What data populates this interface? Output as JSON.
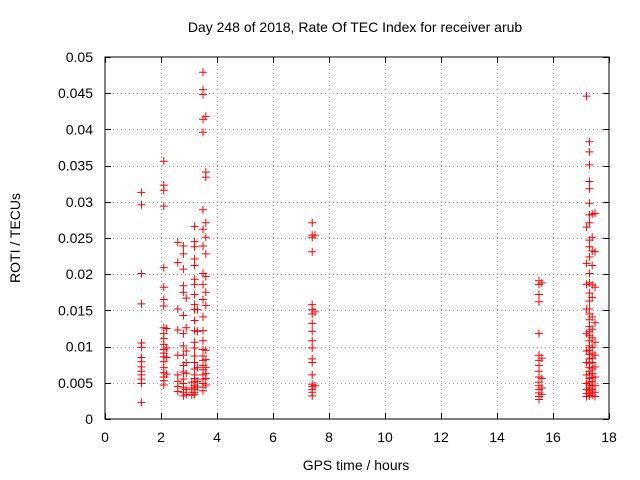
{
  "chart_data": {
    "type": "scatter",
    "title": "Day 248 of 2018, Rate Of TEC Index for receiver arub",
    "xlabel": "GPS time / hours",
    "ylabel": "ROTI / TECUs",
    "xlim": [
      0,
      18
    ],
    "ylim": [
      0,
      0.05
    ],
    "xticks": [
      0,
      2,
      4,
      6,
      8,
      10,
      12,
      14,
      16,
      18
    ],
    "xtick_labels": [
      "0",
      "2",
      "4",
      "6",
      "8",
      "10",
      "12",
      "14",
      "16",
      "18"
    ],
    "yticks": [
      0,
      0.005,
      0.01,
      0.015,
      0.02,
      0.025,
      0.03,
      0.035,
      0.04,
      0.045,
      0.05
    ],
    "ytick_labels": [
      "0",
      "0.005",
      "0.01",
      "0.015",
      "0.02",
      "0.025",
      "0.03",
      "0.035",
      "0.04",
      "0.045",
      "0.05"
    ],
    "grid": true,
    "marker": "+",
    "marker_color": "#ff0000",
    "series": [
      {
        "name": "ROTI",
        "points": [
          [
            1.3,
            0.0313
          ],
          [
            1.3,
            0.0296
          ],
          [
            1.3,
            0.0201
          ],
          [
            1.3,
            0.0159
          ],
          [
            1.3,
            0.0105
          ],
          [
            1.3,
            0.0099
          ],
          [
            1.3,
            0.0085
          ],
          [
            1.3,
            0.0079
          ],
          [
            1.3,
            0.0072
          ],
          [
            1.3,
            0.0066
          ],
          [
            1.3,
            0.0061
          ],
          [
            1.3,
            0.0055
          ],
          [
            1.3,
            0.0049
          ],
          [
            1.3,
            0.0023
          ],
          [
            2.1,
            0.0356
          ],
          [
            2.1,
            0.0323
          ],
          [
            2.1,
            0.0316
          ],
          [
            2.1,
            0.0294
          ],
          [
            2.1,
            0.0209
          ],
          [
            2.1,
            0.0182
          ],
          [
            2.1,
            0.0165
          ],
          [
            2.1,
            0.0156
          ],
          [
            2.1,
            0.0126
          ],
          [
            2.1,
            0.0118
          ],
          [
            2.1,
            0.0111
          ],
          [
            2.1,
            0.0103
          ],
          [
            2.1,
            0.0096
          ],
          [
            2.1,
            0.0091
          ],
          [
            2.1,
            0.0086
          ],
          [
            2.1,
            0.0079
          ],
          [
            2.1,
            0.0071
          ],
          [
            2.1,
            0.0064
          ],
          [
            2.1,
            0.0058
          ],
          [
            2.1,
            0.0053
          ],
          [
            2.1,
            0.0047
          ],
          [
            2.2,
            0.0125
          ],
          [
            2.2,
            0.0098
          ],
          [
            2.2,
            0.0085
          ],
          [
            2.2,
            0.0062
          ],
          [
            2.6,
            0.0244
          ],
          [
            2.6,
            0.0216
          ],
          [
            2.6,
            0.0152
          ],
          [
            2.6,
            0.0123
          ],
          [
            2.6,
            0.0088
          ],
          [
            2.6,
            0.0061
          ],
          [
            2.6,
            0.0052
          ],
          [
            2.6,
            0.0045
          ],
          [
            2.6,
            0.0038
          ],
          [
            2.8,
            0.0239
          ],
          [
            2.8,
            0.0228
          ],
          [
            2.8,
            0.0207
          ],
          [
            2.8,
            0.0184
          ],
          [
            2.8,
            0.0175
          ],
          [
            2.8,
            0.0143
          ],
          [
            2.8,
            0.0118
          ],
          [
            2.8,
            0.0101
          ],
          [
            2.8,
            0.0088
          ],
          [
            2.8,
            0.0074
          ],
          [
            2.8,
            0.0065
          ],
          [
            2.8,
            0.0055
          ],
          [
            2.8,
            0.0049
          ],
          [
            2.8,
            0.0043
          ],
          [
            2.8,
            0.0037
          ],
          [
            2.8,
            0.0032
          ],
          [
            2.9,
            0.0167
          ],
          [
            2.9,
            0.0126
          ],
          [
            2.9,
            0.0094
          ],
          [
            2.9,
            0.0078
          ],
          [
            2.9,
            0.0063
          ],
          [
            2.9,
            0.0041
          ],
          [
            2.9,
            0.0034
          ],
          [
            3.1,
            0.0051
          ],
          [
            3.1,
            0.0043
          ],
          [
            3.1,
            0.0037
          ],
          [
            3.1,
            0.0033
          ],
          [
            3.2,
            0.0266
          ],
          [
            3.2,
            0.0245
          ],
          [
            3.2,
            0.0238
          ],
          [
            3.2,
            0.0221
          ],
          [
            3.2,
            0.0212
          ],
          [
            3.2,
            0.0193
          ],
          [
            3.2,
            0.0186
          ],
          [
            3.2,
            0.0172
          ],
          [
            3.2,
            0.0158
          ],
          [
            3.2,
            0.0151
          ],
          [
            3.2,
            0.0136
          ],
          [
            3.2,
            0.0122
          ],
          [
            3.2,
            0.0106
          ],
          [
            3.2,
            0.0098
          ],
          [
            3.2,
            0.0087
          ],
          [
            3.2,
            0.0078
          ],
          [
            3.2,
            0.0069
          ],
          [
            3.2,
            0.0061
          ],
          [
            3.2,
            0.0056
          ],
          [
            3.2,
            0.0051
          ],
          [
            3.2,
            0.0046
          ],
          [
            3.2,
            0.0041
          ],
          [
            3.2,
            0.0037
          ],
          [
            3.2,
            0.0034
          ],
          [
            3.3,
            0.0151
          ],
          [
            3.3,
            0.0121
          ],
          [
            3.3,
            0.0071
          ],
          [
            3.3,
            0.0052
          ],
          [
            3.3,
            0.0044
          ],
          [
            3.5,
            0.0479
          ],
          [
            3.5,
            0.0455
          ],
          [
            3.5,
            0.0448
          ],
          [
            3.5,
            0.0414
          ],
          [
            3.5,
            0.0396
          ],
          [
            3.5,
            0.0289
          ],
          [
            3.5,
            0.0262
          ],
          [
            3.5,
            0.0239
          ],
          [
            3.5,
            0.0201
          ],
          [
            3.5,
            0.0186
          ],
          [
            3.5,
            0.0165
          ],
          [
            3.5,
            0.0141
          ],
          [
            3.5,
            0.0122
          ],
          [
            3.5,
            0.0108
          ],
          [
            3.5,
            0.0096
          ],
          [
            3.5,
            0.0087
          ],
          [
            3.5,
            0.0081
          ],
          [
            3.5,
            0.0074
          ],
          [
            3.5,
            0.0068
          ],
          [
            3.5,
            0.0061
          ],
          [
            3.5,
            0.0055
          ],
          [
            3.5,
            0.0049
          ],
          [
            3.5,
            0.0044
          ],
          [
            3.5,
            0.0039
          ],
          [
            3.6,
            0.0418
          ],
          [
            3.6,
            0.0341
          ],
          [
            3.6,
            0.0334
          ],
          [
            3.6,
            0.0271
          ],
          [
            3.6,
            0.0251
          ],
          [
            3.6,
            0.0228
          ],
          [
            3.6,
            0.0197
          ],
          [
            3.6,
            0.0175
          ],
          [
            3.6,
            0.0157
          ],
          [
            3.6,
            0.0095
          ],
          [
            3.6,
            0.0082
          ],
          [
            3.6,
            0.0071
          ],
          [
            3.6,
            0.0063
          ],
          [
            3.6,
            0.0056
          ],
          [
            3.6,
            0.0047
          ],
          [
            7.4,
            0.0271
          ],
          [
            7.4,
            0.0254
          ],
          [
            7.4,
            0.0251
          ],
          [
            7.4,
            0.0231
          ],
          [
            7.4,
            0.0158
          ],
          [
            7.4,
            0.0151
          ],
          [
            7.4,
            0.0145
          ],
          [
            7.4,
            0.0132
          ],
          [
            7.4,
            0.0121
          ],
          [
            7.4,
            0.0108
          ],
          [
            7.4,
            0.0098
          ],
          [
            7.4,
            0.0083
          ],
          [
            7.4,
            0.0078
          ],
          [
            7.4,
            0.0061
          ],
          [
            7.4,
            0.0048
          ],
          [
            7.4,
            0.0045
          ],
          [
            7.4,
            0.0041
          ],
          [
            7.4,
            0.0037
          ],
          [
            7.4,
            0.0032
          ],
          [
            7.5,
            0.0254
          ],
          [
            7.5,
            0.0148
          ],
          [
            7.5,
            0.0046
          ],
          [
            15.5,
            0.0191
          ],
          [
            15.5,
            0.0186
          ],
          [
            15.5,
            0.0172
          ],
          [
            15.5,
            0.0162
          ],
          [
            15.5,
            0.0118
          ],
          [
            15.5,
            0.0088
          ],
          [
            15.5,
            0.0081
          ],
          [
            15.5,
            0.0074
          ],
          [
            15.5,
            0.0066
          ],
          [
            15.5,
            0.0058
          ],
          [
            15.5,
            0.0051
          ],
          [
            15.5,
            0.0046
          ],
          [
            15.5,
            0.0041
          ],
          [
            15.5,
            0.0036
          ],
          [
            15.5,
            0.0031
          ],
          [
            15.5,
            0.0027
          ],
          [
            15.6,
            0.0188
          ],
          [
            15.6,
            0.0084
          ],
          [
            15.6,
            0.0056
          ],
          [
            15.6,
            0.0043
          ],
          [
            15.6,
            0.0034
          ],
          [
            17.2,
            0.0446
          ],
          [
            17.2,
            0.0265
          ],
          [
            17.2,
            0.0215
          ],
          [
            17.2,
            0.0186
          ],
          [
            17.2,
            0.0152
          ],
          [
            17.2,
            0.0118
          ],
          [
            17.2,
            0.0094
          ],
          [
            17.2,
            0.0078
          ],
          [
            17.2,
            0.0061
          ],
          [
            17.2,
            0.0049
          ],
          [
            17.2,
            0.0041
          ],
          [
            17.2,
            0.0035
          ],
          [
            17.2,
            0.0031
          ],
          [
            17.3,
            0.0383
          ],
          [
            17.3,
            0.0369
          ],
          [
            17.3,
            0.0351
          ],
          [
            17.3,
            0.0328
          ],
          [
            17.3,
            0.0318
          ],
          [
            17.3,
            0.0298
          ],
          [
            17.3,
            0.0282
          ],
          [
            17.3,
            0.0271
          ],
          [
            17.3,
            0.0247
          ],
          [
            17.3,
            0.0238
          ],
          [
            17.3,
            0.0224
          ],
          [
            17.3,
            0.0201
          ],
          [
            17.3,
            0.0188
          ],
          [
            17.3,
            0.0174
          ],
          [
            17.3,
            0.0163
          ],
          [
            17.3,
            0.0152
          ],
          [
            17.3,
            0.0145
          ],
          [
            17.3,
            0.0137
          ],
          [
            17.3,
            0.0128
          ],
          [
            17.3,
            0.0121
          ],
          [
            17.3,
            0.0115
          ],
          [
            17.3,
            0.0108
          ],
          [
            17.3,
            0.0101
          ],
          [
            17.3,
            0.0095
          ],
          [
            17.3,
            0.0089
          ],
          [
            17.3,
            0.0083
          ],
          [
            17.3,
            0.0077
          ],
          [
            17.3,
            0.0071
          ],
          [
            17.3,
            0.0066
          ],
          [
            17.3,
            0.0061
          ],
          [
            17.3,
            0.0056
          ],
          [
            17.3,
            0.0051
          ],
          [
            17.3,
            0.0047
          ],
          [
            17.3,
            0.0043
          ],
          [
            17.3,
            0.0039
          ],
          [
            17.3,
            0.0035
          ],
          [
            17.3,
            0.0032
          ],
          [
            17.4,
            0.0283
          ],
          [
            17.4,
            0.0251
          ],
          [
            17.4,
            0.0232
          ],
          [
            17.4,
            0.0212
          ],
          [
            17.4,
            0.0185
          ],
          [
            17.4,
            0.0168
          ],
          [
            17.4,
            0.0141
          ],
          [
            17.4,
            0.0124
          ],
          [
            17.4,
            0.0112
          ],
          [
            17.4,
            0.0099
          ],
          [
            17.4,
            0.0091
          ],
          [
            17.4,
            0.0084
          ],
          [
            17.4,
            0.0078
          ],
          [
            17.4,
            0.0069
          ],
          [
            17.4,
            0.0063
          ],
          [
            17.4,
            0.0057
          ],
          [
            17.4,
            0.0052
          ],
          [
            17.4,
            0.0046
          ],
          [
            17.4,
            0.0041
          ],
          [
            17.4,
            0.0037
          ],
          [
            17.4,
            0.0033
          ],
          [
            17.5,
            0.0284
          ],
          [
            17.5,
            0.0231
          ],
          [
            17.5,
            0.0182
          ],
          [
            17.5,
            0.0133
          ],
          [
            17.5,
            0.0106
          ],
          [
            17.5,
            0.0088
          ],
          [
            17.5,
            0.0072
          ],
          [
            17.5,
            0.0058
          ],
          [
            17.5,
            0.0046
          ],
          [
            17.5,
            0.0037
          ],
          [
            17.5,
            0.0031
          ]
        ]
      }
    ]
  }
}
